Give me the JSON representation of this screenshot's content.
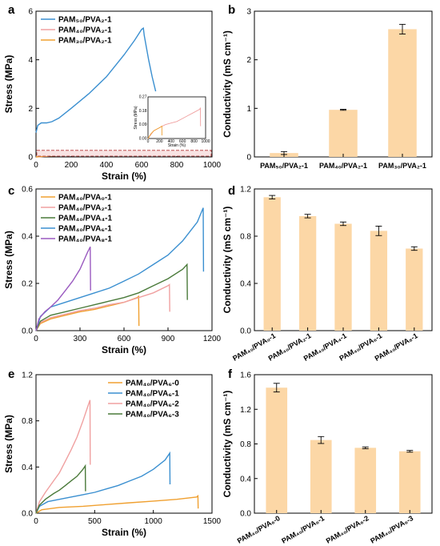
{
  "figure": {
    "panels": [
      {
        "id": "a",
        "label": "a"
      },
      {
        "id": "b",
        "label": "b"
      },
      {
        "id": "c",
        "label": "c"
      },
      {
        "id": "d",
        "label": "d"
      },
      {
        "id": "e",
        "label": "e"
      },
      {
        "id": "f",
        "label": "f"
      }
    ]
  },
  "chart_data": [
    {
      "panel": "a",
      "type": "line",
      "xlabel": "Strain (%)",
      "ylabel": "Stress (MPa)",
      "xlim": [
        0,
        1000
      ],
      "ylim": [
        0,
        6
      ],
      "xticks": [
        0,
        200,
        400,
        600,
        800,
        1000
      ],
      "yticks": [
        0,
        2,
        4,
        6
      ],
      "legend_position": "top-left",
      "series": [
        {
          "name": "PAM₅₀/PVA₂-1",
          "color": "#3a8fd0",
          "x": [
            0,
            10,
            30,
            60,
            90,
            130,
            200,
            300,
            400,
            500,
            560,
            600,
            610,
            615,
            625,
            640,
            660,
            680
          ],
          "y": [
            1.0,
            1.3,
            1.4,
            1.4,
            1.45,
            1.6,
            2.0,
            2.6,
            3.3,
            4.2,
            4.8,
            5.25,
            5.3,
            5.0,
            4.6,
            4.0,
            3.3,
            2.7
          ]
        },
        {
          "name": "PAM₄₀/PVA₂-1",
          "color": "#f0a0a0",
          "x": [
            0,
            100,
            200,
            300,
            400,
            500,
            600,
            700,
            800,
            900,
            910,
            912
          ],
          "y": [
            0,
            0.05,
            0.07,
            0.09,
            0.1,
            0.11,
            0.13,
            0.15,
            0.17,
            0.19,
            0.2,
            0.08
          ]
        },
        {
          "name": "PAM₃₀/PVA₂-1",
          "color": "#f0a030",
          "x": [
            0,
            50,
            100,
            150,
            200,
            240,
            242
          ],
          "y": [
            0,
            0.03,
            0.05,
            0.06,
            0.07,
            0.08,
            0.02
          ]
        }
      ],
      "inset": {
        "xlabel": "Strain (%)",
        "ylabel": "Stress (MPa)",
        "xlim": [
          0,
          1000
        ],
        "ylim": [
          0,
          0.27
        ],
        "xticks": [
          0,
          200,
          400,
          600,
          800,
          1000
        ],
        "yticks": [
          0,
          0.09,
          0.18,
          0.27
        ],
        "ytick_labels": [
          "0.00",
          "0.09",
          "0.18",
          "0.27"
        ],
        "series": [
          {
            "name": "PAM₄₀/PVA₂-1",
            "color": "#f0a0a0",
            "x": [
              0,
              100,
              200,
              300,
              400,
              500,
              600,
              700,
              800,
              900,
              910,
              912
            ],
            "y": [
              0,
              0.05,
              0.07,
              0.09,
              0.1,
              0.11,
              0.13,
              0.15,
              0.17,
              0.19,
              0.2,
              0.08
            ]
          },
          {
            "name": "PAM₃₀/PVA₂-1",
            "color": "#f0a030",
            "x": [
              0,
              50,
              100,
              150,
              200,
              240,
              242
            ],
            "y": [
              0,
              0.03,
              0.05,
              0.06,
              0.07,
              0.08,
              0.02
            ]
          }
        ]
      }
    },
    {
      "panel": "b",
      "type": "bar",
      "xlabel": "",
      "ylabel": "Conductivity (mS cm⁻¹)",
      "ylim": [
        0,
        3
      ],
      "yticks": [
        0,
        1,
        2,
        3
      ],
      "categories": [
        "PAM₅₀/PVA₂-1",
        "PAM₄₀/PVA₂-1",
        "PAM₃₀/PVA₂-1"
      ],
      "values": [
        0.08,
        0.97,
        2.63
      ],
      "errors": [
        0.03,
        0.01,
        0.1
      ],
      "bar_color": "#fcd7a6"
    },
    {
      "panel": "c",
      "type": "line",
      "xlabel": "Strain (%)",
      "ylabel": "Stress (MPa)",
      "xlim": [
        0,
        1200
      ],
      "ylim": [
        0,
        0.6
      ],
      "xticks": [
        0,
        300,
        600,
        900,
        1200
      ],
      "yticks": [
        0,
        0.2,
        0.4,
        0.6
      ],
      "ytick_labels": [
        "0.0",
        "0.2",
        "0.4",
        "0.6"
      ],
      "legend_position": "top-left",
      "series": [
        {
          "name": "PAM₄₀/PVA₀-1",
          "color": "#f0a030",
          "x": [
            0,
            30,
            100,
            200,
            300,
            400,
            500,
            600,
            690,
            700,
            702
          ],
          "y": [
            0,
            0.03,
            0.05,
            0.065,
            0.08,
            0.09,
            0.105,
            0.12,
            0.14,
            0.145,
            0.02
          ]
        },
        {
          "name": "PAM₄₀/PVA₂-1",
          "color": "#f0a0a0",
          "x": [
            0,
            30,
            100,
            200,
            300,
            400,
            500,
            600,
            700,
            800,
            900,
            910,
            912
          ],
          "y": [
            0,
            0.035,
            0.055,
            0.07,
            0.085,
            0.095,
            0.11,
            0.12,
            0.14,
            0.16,
            0.19,
            0.195,
            0.08
          ]
        },
        {
          "name": "PAM₄₀/PVA₄-1",
          "color": "#4a7a3a",
          "x": [
            0,
            30,
            100,
            200,
            300,
            400,
            500,
            600,
            700,
            800,
            900,
            1000,
            1030,
            1032
          ],
          "y": [
            0,
            0.04,
            0.065,
            0.08,
            0.095,
            0.11,
            0.125,
            0.14,
            0.16,
            0.19,
            0.22,
            0.26,
            0.28,
            0.13
          ]
        },
        {
          "name": "PAM₄₀/PVA₆-1",
          "color": "#3a8fd0",
          "x": [
            0,
            30,
            100,
            200,
            300,
            400,
            500,
            600,
            700,
            800,
            900,
            1000,
            1100,
            1140,
            1142
          ],
          "y": [
            0,
            0.06,
            0.1,
            0.12,
            0.14,
            0.16,
            0.18,
            0.21,
            0.24,
            0.28,
            0.32,
            0.38,
            0.46,
            0.52,
            0.25
          ]
        },
        {
          "name": "PAM₄₀/PVA₈-1",
          "color": "#9a5ac0",
          "x": [
            0,
            20,
            60,
            100,
            150,
            200,
            250,
            300,
            350,
            370,
            372
          ],
          "y": [
            0,
            0.05,
            0.08,
            0.1,
            0.13,
            0.17,
            0.21,
            0.26,
            0.33,
            0.355,
            0.17
          ]
        }
      ]
    },
    {
      "panel": "d",
      "type": "bar",
      "xlabel": "",
      "ylabel": "Conductivity (mS cm⁻¹)",
      "ylim": [
        0,
        1.2
      ],
      "yticks": [
        0,
        0.4,
        0.8,
        1.2
      ],
      "ytick_labels": [
        "0.0",
        "0.4",
        "0.8",
        "1.2"
      ],
      "categories": [
        "PAM₄₀/PVA₀-1",
        "PAM₄₀/PVA₂-1",
        "PAM₄₀/PVA₄-1",
        "PAM₄₀/PVA₆-1",
        "PAM₄₀/PVA₈-1"
      ],
      "values": [
        1.13,
        0.97,
        0.905,
        0.845,
        0.695
      ],
      "errors": [
        0.015,
        0.015,
        0.015,
        0.04,
        0.015
      ],
      "bar_color": "#fcd7a6"
    },
    {
      "panel": "e",
      "type": "line",
      "xlabel": "Strain (%)",
      "ylabel": "Stress (MPa)",
      "xlim": [
        0,
        1500
      ],
      "ylim": [
        0,
        1.2
      ],
      "xticks": [
        0,
        500,
        1000,
        1500
      ],
      "yticks": [
        0,
        0.4,
        0.8,
        1.2
      ],
      "ytick_labels": [
        "0.0",
        "0.4",
        "0.8",
        "1.2"
      ],
      "legend_position": "top-right",
      "series": [
        {
          "name": "PAM₄₀/PVA₆-0",
          "color": "#f0a030",
          "x": [
            0,
            50,
            200,
            400,
            600,
            800,
            1000,
            1200,
            1370,
            1380,
            1382
          ],
          "y": [
            0,
            0.03,
            0.05,
            0.06,
            0.075,
            0.09,
            0.105,
            0.12,
            0.14,
            0.15,
            0.04
          ]
        },
        {
          "name": "PAM₄₀/PVA₆-1",
          "color": "#3a8fd0",
          "x": [
            0,
            30,
            100,
            200,
            300,
            400,
            500,
            600,
            700,
            800,
            900,
            1000,
            1100,
            1140,
            1142
          ],
          "y": [
            0,
            0.06,
            0.1,
            0.12,
            0.14,
            0.16,
            0.18,
            0.21,
            0.24,
            0.28,
            0.32,
            0.38,
            0.46,
            0.52,
            0.25
          ]
        },
        {
          "name": "PAM₄₀/PVA₆-2",
          "color": "#f0a0a0",
          "x": [
            0,
            30,
            80,
            150,
            200,
            250,
            300,
            350,
            400,
            440,
            460,
            462
          ],
          "y": [
            0,
            0.1,
            0.18,
            0.28,
            0.35,
            0.45,
            0.55,
            0.66,
            0.8,
            0.92,
            0.98,
            0.42
          ]
        },
        {
          "name": "PAM₄₀/PVA₆-3",
          "color": "#4a7a3a",
          "x": [
            0,
            30,
            80,
            150,
            200,
            250,
            300,
            350,
            400,
            420,
            422
          ],
          "y": [
            0,
            0.07,
            0.12,
            0.17,
            0.2,
            0.24,
            0.28,
            0.32,
            0.38,
            0.41,
            0.19
          ]
        }
      ]
    },
    {
      "panel": "f",
      "type": "bar",
      "xlabel": "",
      "ylabel": "Conductivity (mS cm⁻¹)",
      "ylim": [
        0,
        1.6
      ],
      "yticks": [
        0,
        0.4,
        0.8,
        1.2,
        1.6
      ],
      "ytick_labels": [
        "0.0",
        "0.4",
        "0.8",
        "1.2",
        "1.6"
      ],
      "categories": [
        "PAM₄₀/PVA₆-0",
        "PAM₄₀/PVA₆-1",
        "PAM₄₀/PVA₆-2",
        "PAM₄₀/PVA₆-3"
      ],
      "values": [
        1.45,
        0.845,
        0.755,
        0.715
      ],
      "errors": [
        0.05,
        0.04,
        0.01,
        0.01
      ],
      "bar_color": "#fcd7a6"
    }
  ]
}
